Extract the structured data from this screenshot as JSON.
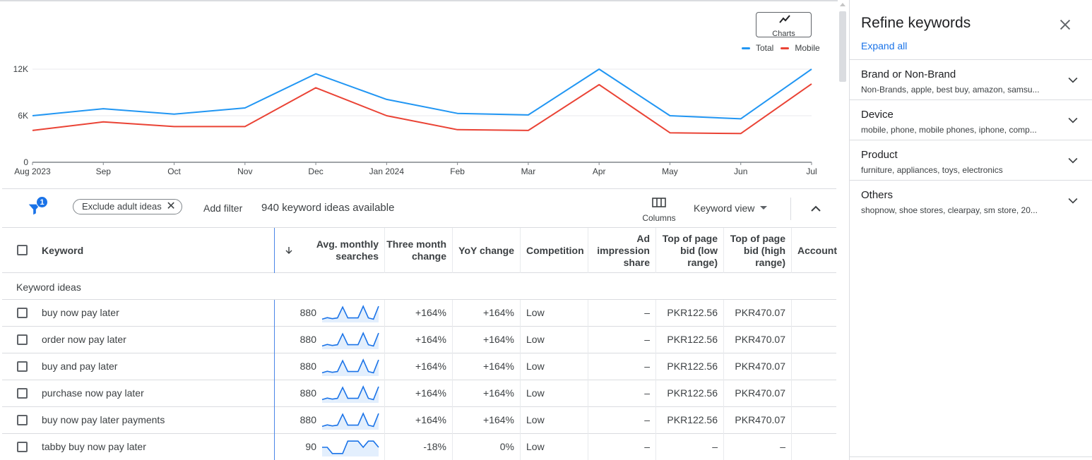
{
  "chart_data": {
    "type": "line",
    "x": [
      "Aug 2023",
      "Sep",
      "Oct",
      "Nov",
      "Dec",
      "Jan 2024",
      "Feb",
      "Mar",
      "Apr",
      "May",
      "Jun",
      "Jul"
    ],
    "series": [
      {
        "name": "Total",
        "color": "#2196f3",
        "values": [
          6000,
          6900,
          6200,
          7000,
          11400,
          8100,
          6300,
          6100,
          12000,
          6000,
          5600,
          12000
        ]
      },
      {
        "name": "Mobile",
        "color": "#ea4335",
        "values": [
          4100,
          5200,
          4600,
          4600,
          9600,
          6000,
          4200,
          4100,
          10000,
          3800,
          3700,
          10100
        ]
      }
    ],
    "yticks": [
      0,
      6000,
      12000
    ],
    "ytick_labels": [
      "0",
      "6K",
      "12K"
    ],
    "ylim": [
      0,
      12000
    ],
    "grid": true,
    "legend": "top-right"
  },
  "toolbar": {
    "charts_label": "Charts",
    "legend_total": "Total",
    "legend_mobile": "Mobile"
  },
  "filter_bar": {
    "badge_count": "1",
    "chip_label": "Exclude adult ideas",
    "add_filter": "Add filter",
    "ideas_count": "940 keyword ideas available",
    "columns_label": "Columns",
    "view_label": "Keyword view"
  },
  "table": {
    "headers": {
      "keyword": "Keyword",
      "searches": "Avg. monthly searches",
      "three_month": "Three month change",
      "yoy": "YoY change",
      "competition": "Competition",
      "ad_share": "Ad impression share",
      "bid_low": "Top of page bid (low range)",
      "bid_high": "Top of page bid (high range)",
      "account": "Account"
    },
    "group_label": "Keyword ideas",
    "rows": [
      {
        "keyword": "buy now pay later",
        "searches": "880",
        "trend": [
          0.12,
          0.22,
          0.15,
          0.2,
          0.9,
          0.2,
          0.2,
          0.2,
          0.95,
          0.2,
          0.12,
          0.95
        ],
        "three_month": "+164%",
        "yoy": "+164%",
        "competition": "Low",
        "ad_share": "–",
        "bid_low": "PKR122.56",
        "bid_high": "PKR470.07",
        "account": ""
      },
      {
        "keyword": "order now pay later",
        "searches": "880",
        "trend": [
          0.12,
          0.22,
          0.15,
          0.2,
          0.9,
          0.2,
          0.2,
          0.2,
          0.95,
          0.2,
          0.12,
          0.95
        ],
        "three_month": "+164%",
        "yoy": "+164%",
        "competition": "Low",
        "ad_share": "–",
        "bid_low": "PKR122.56",
        "bid_high": "PKR470.07",
        "account": ""
      },
      {
        "keyword": "buy and pay later",
        "searches": "880",
        "trend": [
          0.12,
          0.22,
          0.15,
          0.2,
          0.9,
          0.2,
          0.2,
          0.2,
          0.95,
          0.2,
          0.12,
          0.95
        ],
        "three_month": "+164%",
        "yoy": "+164%",
        "competition": "Low",
        "ad_share": "–",
        "bid_low": "PKR122.56",
        "bid_high": "PKR470.07",
        "account": ""
      },
      {
        "keyword": "purchase now pay later",
        "searches": "880",
        "trend": [
          0.12,
          0.22,
          0.15,
          0.2,
          0.9,
          0.2,
          0.2,
          0.2,
          0.95,
          0.2,
          0.12,
          0.95
        ],
        "three_month": "+164%",
        "yoy": "+164%",
        "competition": "Low",
        "ad_share": "–",
        "bid_low": "PKR122.56",
        "bid_high": "PKR470.07",
        "account": ""
      },
      {
        "keyword": "buy now pay later payments",
        "searches": "880",
        "trend": [
          0.12,
          0.22,
          0.15,
          0.2,
          0.9,
          0.2,
          0.2,
          0.2,
          0.95,
          0.2,
          0.12,
          0.95
        ],
        "three_month": "+164%",
        "yoy": "+164%",
        "competition": "Low",
        "ad_share": "–",
        "bid_low": "PKR122.56",
        "bid_high": "PKR470.07",
        "account": ""
      },
      {
        "keyword": "tabby buy now pay later",
        "searches": "90",
        "trend": [
          0.5,
          0.5,
          0.1,
          0.1,
          0.1,
          0.9,
          0.9,
          0.9,
          0.5,
          0.9,
          0.9,
          0.5
        ],
        "three_month": "-18%",
        "yoy": "0%",
        "competition": "Low",
        "ad_share": "–",
        "bid_low": "–",
        "bid_high": "–",
        "account": ""
      }
    ]
  },
  "panel": {
    "title": "Refine keywords",
    "expand_all": "Expand all",
    "sections": [
      {
        "title": "Brand or Non-Brand",
        "subtitle": "Non-Brands, apple, best buy, amazon, samsu..."
      },
      {
        "title": "Device",
        "subtitle": "mobile, phone, mobile phones, iphone, comp..."
      },
      {
        "title": "Product",
        "subtitle": "furniture, appliances, toys, electronics"
      },
      {
        "title": "Others",
        "subtitle": "shopnow, shoe stores, clearpay, sm store, 20..."
      }
    ]
  }
}
